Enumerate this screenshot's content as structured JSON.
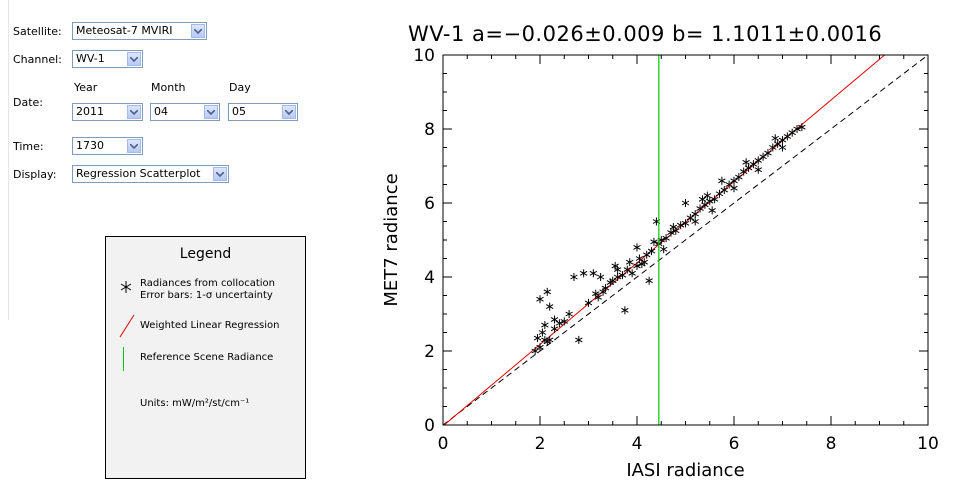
{
  "form": {
    "satellite": {
      "label": "Satellite:",
      "value": "Meteosat-7 MVIRI"
    },
    "channel": {
      "label": "Channel:",
      "value": "WV-1"
    },
    "date": {
      "label": "Date:",
      "year_label": "Year",
      "month_label": "Month",
      "day_label": "Day",
      "year": "2011",
      "month": "04",
      "day": "05"
    },
    "time": {
      "label": "Time:",
      "value": "1730"
    },
    "display": {
      "label": "Display:",
      "value": "Regression Scatterplot"
    }
  },
  "legend": {
    "title": "Legend",
    "item1_line1": "Radiances from collocation",
    "item1_line2": "Error bars: 1-σ uncertainty",
    "item2": "Weighted Linear Regression",
    "item3": "Reference Scene Radiance",
    "units": "Units: mW/m²/st/cm⁻¹"
  },
  "chart_data": {
    "type": "scatter",
    "title": "WV-1   a=−0.026±0.009   b=  1.1011±0.0016",
    "xlabel": "IASI radiance",
    "ylabel": "MET7 radiance",
    "xlim": [
      0,
      10
    ],
    "ylim": [
      0,
      10
    ],
    "xticks": [
      0,
      2,
      4,
      6,
      8,
      10
    ],
    "yticks": [
      0,
      2,
      4,
      6,
      8,
      10
    ],
    "regression": {
      "a": -0.026,
      "b": 1.1011
    },
    "reference_x": 4.45,
    "colors": {
      "regression": "#e00000",
      "reference": "#00cc00",
      "identity": "#000000",
      "points": "#000000"
    },
    "series": [
      {
        "marker": "asterisk",
        "points": [
          [
            1.9,
            2.0
          ],
          [
            2.0,
            2.1
          ],
          [
            2.1,
            2.3
          ],
          [
            2.2,
            2.3
          ],
          [
            1.95,
            2.35
          ],
          [
            2.05,
            2.5
          ],
          [
            2.3,
            2.6
          ],
          [
            2.15,
            2.25
          ],
          [
            2.4,
            2.75
          ],
          [
            2.5,
            2.8
          ],
          [
            2.6,
            3.0
          ],
          [
            2.3,
            2.85
          ],
          [
            2.2,
            3.2
          ],
          [
            2.1,
            2.7
          ],
          [
            2.0,
            3.4
          ],
          [
            2.15,
            3.6
          ],
          [
            2.8,
            2.3
          ],
          [
            2.7,
            4.0
          ],
          [
            2.9,
            4.1
          ],
          [
            3.0,
            3.3
          ],
          [
            3.15,
            3.55
          ],
          [
            3.2,
            3.45
          ],
          [
            3.3,
            3.6
          ],
          [
            3.1,
            4.1
          ],
          [
            3.25,
            4.0
          ],
          [
            3.35,
            3.7
          ],
          [
            3.5,
            3.9
          ],
          [
            3.6,
            4.0
          ],
          [
            3.7,
            4.05
          ],
          [
            3.8,
            4.2
          ],
          [
            3.45,
            3.85
          ],
          [
            3.55,
            4.3
          ],
          [
            3.6,
            4.2
          ],
          [
            3.75,
            3.1
          ],
          [
            3.9,
            4.1
          ],
          [
            4.0,
            4.3
          ],
          [
            3.85,
            4.4
          ],
          [
            4.05,
            4.5
          ],
          [
            4.1,
            4.35
          ],
          [
            4.2,
            4.6
          ],
          [
            4.15,
            4.4
          ],
          [
            4.25,
            3.9
          ],
          [
            4.0,
            4.8
          ],
          [
            4.3,
            4.7
          ],
          [
            4.4,
            5.5
          ],
          [
            4.45,
            4.9
          ],
          [
            4.5,
            5.0
          ],
          [
            4.6,
            5.05
          ],
          [
            4.7,
            5.2
          ],
          [
            4.8,
            5.25
          ],
          [
            4.9,
            5.4
          ],
          [
            5.0,
            5.45
          ],
          [
            5.1,
            5.6
          ],
          [
            5.2,
            5.7
          ],
          [
            5.3,
            5.85
          ],
          [
            5.4,
            5.95
          ],
          [
            5.5,
            6.05
          ],
          [
            5.6,
            6.1
          ],
          [
            5.7,
            6.25
          ],
          [
            5.8,
            6.35
          ],
          [
            5.9,
            6.5
          ],
          [
            6.0,
            6.6
          ],
          [
            6.1,
            6.7
          ],
          [
            6.2,
            6.85
          ],
          [
            6.3,
            6.95
          ],
          [
            6.4,
            7.05
          ],
          [
            6.5,
            7.15
          ],
          [
            6.6,
            7.25
          ],
          [
            6.7,
            7.35
          ],
          [
            6.8,
            7.5
          ],
          [
            6.9,
            7.6
          ],
          [
            7.0,
            7.7
          ],
          [
            7.1,
            7.8
          ],
          [
            7.2,
            7.9
          ],
          [
            7.3,
            8.0
          ],
          [
            7.4,
            8.05
          ],
          [
            5.0,
            6.0
          ],
          [
            5.35,
            6.1
          ],
          [
            5.75,
            6.6
          ],
          [
            6.25,
            7.1
          ],
          [
            6.85,
            7.75
          ],
          [
            4.55,
            4.75
          ],
          [
            5.2,
            5.5
          ],
          [
            5.55,
            5.8
          ],
          [
            6.0,
            6.4
          ],
          [
            6.5,
            6.9
          ],
          [
            7.0,
            7.5
          ],
          [
            4.35,
            4.95
          ],
          [
            4.75,
            5.35
          ],
          [
            5.45,
            6.2
          ]
        ]
      }
    ]
  }
}
